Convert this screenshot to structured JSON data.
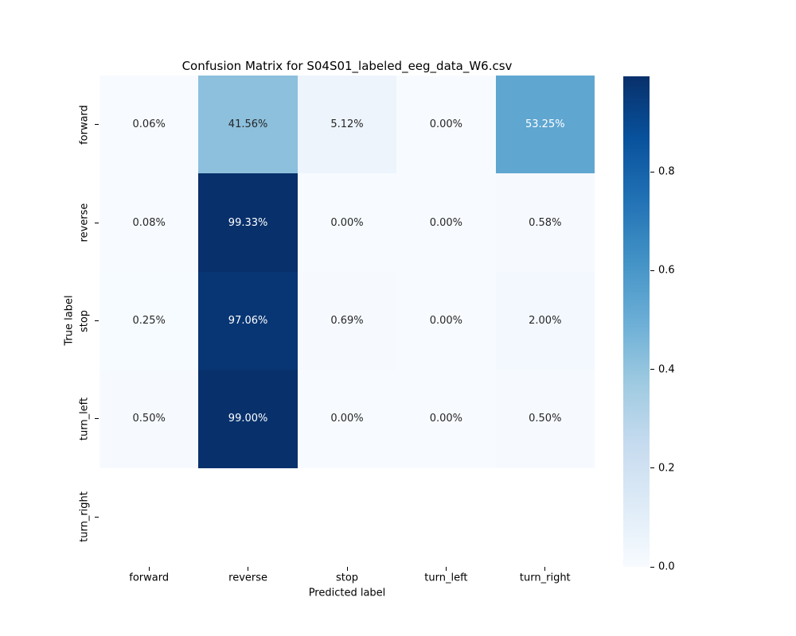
{
  "chart_data": {
    "type": "heatmap",
    "title": "Confusion Matrix for S04S01_labeled_eeg_data_W6.csv",
    "xlabel": "Predicted label",
    "ylabel": "True label",
    "x_categories": [
      "forward",
      "reverse",
      "stop",
      "turn_left",
      "turn_right"
    ],
    "y_categories": [
      "forward",
      "reverse",
      "stop",
      "turn_left",
      "turn_right"
    ],
    "values_percent": [
      [
        0.06,
        41.56,
        5.12,
        0.0,
        53.25
      ],
      [
        0.08,
        99.33,
        0.0,
        0.0,
        0.58
      ],
      [
        0.25,
        97.06,
        0.69,
        0.0,
        2.0
      ],
      [
        0.5,
        99.0,
        0.0,
        0.0,
        0.5
      ],
      [
        null,
        null,
        null,
        null,
        null
      ]
    ],
    "value_suffix": "%",
    "value_decimals": 2,
    "colormap": {
      "name": "Blues",
      "stops": [
        {
          "pos": 0.0,
          "color": "#f7fbff"
        },
        {
          "pos": 0.125,
          "color": "#deebf7"
        },
        {
          "pos": 0.25,
          "color": "#c6dbef"
        },
        {
          "pos": 0.375,
          "color": "#9ecae1"
        },
        {
          "pos": 0.5,
          "color": "#6baed6"
        },
        {
          "pos": 0.625,
          "color": "#4292c6"
        },
        {
          "pos": 0.75,
          "color": "#2171b5"
        },
        {
          "pos": 0.875,
          "color": "#08519c"
        },
        {
          "pos": 1.0,
          "color": "#08306b"
        }
      ]
    },
    "colorbar": {
      "vmin": 0.0,
      "vmax": 0.9933,
      "ticks": [
        0.0,
        0.2,
        0.4,
        0.6,
        0.8
      ],
      "tick_decimals": 1
    },
    "colors": {
      "nan_cell": "#ffffff",
      "dark_text": "#262626",
      "light_text": "#ffffff",
      "background": "#ffffff"
    },
    "layout_hints": {
      "legend": "colorbar-right",
      "grid": false,
      "cell_rows": 5,
      "cell_cols": 5
    }
  }
}
